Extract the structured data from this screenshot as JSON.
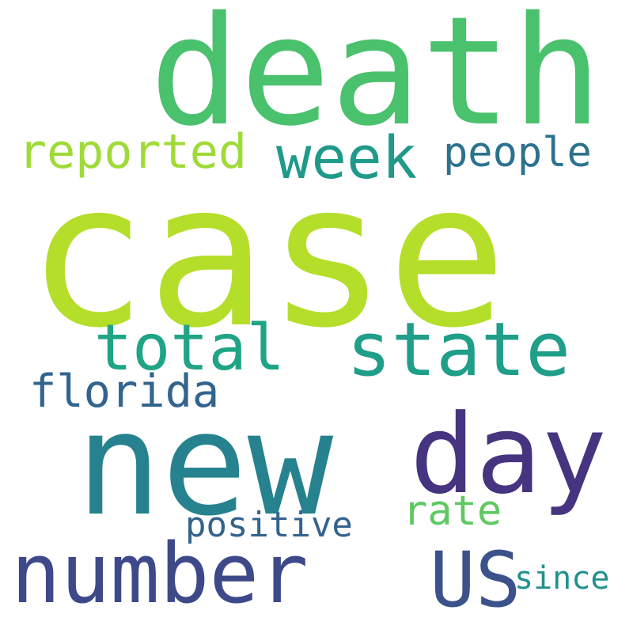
{
  "words": [
    {
      "text": "case",
      "color": "#b5de2b"
    },
    {
      "text": "death",
      "color": "#4ac16d"
    },
    {
      "text": "new",
      "color": "#26828e"
    },
    {
      "text": "number",
      "color": "#3e4989"
    },
    {
      "text": "state",
      "color": "#1f9e89"
    },
    {
      "text": "day",
      "color": "#463480"
    },
    {
      "text": "US",
      "color": "#3b528b"
    },
    {
      "text": "week",
      "color": "#1f9a8a"
    },
    {
      "text": "total",
      "color": "#20a486"
    },
    {
      "text": "reported",
      "color": "#a0da39"
    },
    {
      "text": "people",
      "color": "#2c728e"
    },
    {
      "text": "florida",
      "color": "#32648e"
    },
    {
      "text": "rate",
      "color": "#5ec962"
    },
    {
      "text": "positive",
      "color": "#33638d"
    },
    {
      "text": "since",
      "color": "#21918c"
    }
  ]
}
